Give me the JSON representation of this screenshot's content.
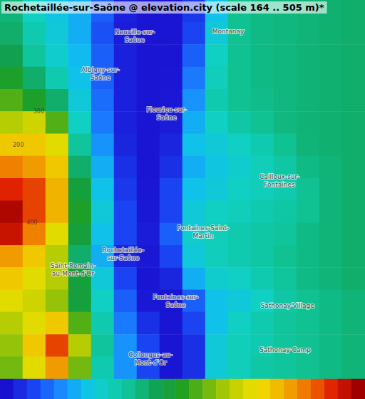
{
  "chart_data": {
    "type": "heatmap",
    "title": "Rochetaillée-sur-Saône @ elevation.city (scale 164 .. 505 m)*",
    "tick_labels": false,
    "grid_values": [
      [
        295,
        260,
        245,
        230,
        200,
        172,
        166,
        166,
        185,
        240,
        285,
        290,
        292,
        295,
        298,
        300
      ],
      [
        300,
        270,
        250,
        230,
        195,
        170,
        166,
        166,
        190,
        250,
        285,
        290,
        292,
        295,
        298,
        300
      ],
      [
        310,
        280,
        255,
        235,
        200,
        172,
        166,
        166,
        200,
        260,
        285,
        290,
        292,
        296,
        298,
        300
      ],
      [
        330,
        300,
        270,
        240,
        200,
        172,
        166,
        167,
        210,
        265,
        285,
        290,
        292,
        296,
        298,
        300
      ],
      [
        350,
        330,
        300,
        250,
        205,
        172,
        166,
        168,
        220,
        270,
        285,
        288,
        292,
        296,
        298,
        300
      ],
      [
        380,
        390,
        350,
        260,
        210,
        172,
        166,
        170,
        230,
        260,
        275,
        285,
        292,
        296,
        298,
        300
      ],
      [
        420,
        420,
        400,
        280,
        220,
        175,
        166,
        175,
        240,
        250,
        260,
        270,
        285,
        295,
        298,
        300
      ],
      [
        450,
        440,
        420,
        300,
        230,
        180,
        166,
        180,
        230,
        245,
        255,
        265,
        275,
        290,
        295,
        300
      ],
      [
        480,
        470,
        430,
        320,
        240,
        185,
        167,
        190,
        240,
        250,
        260,
        265,
        270,
        285,
        295,
        300
      ],
      [
        500,
        470,
        430,
        330,
        250,
        190,
        168,
        190,
        250,
        260,
        265,
        270,
        275,
        285,
        295,
        300
      ],
      [
        490,
        450,
        400,
        320,
        240,
        190,
        170,
        200,
        255,
        265,
        270,
        275,
        280,
        290,
        295,
        300
      ],
      [
        440,
        420,
        380,
        300,
        230,
        175,
        168,
        190,
        250,
        265,
        270,
        275,
        285,
        290,
        295,
        300
      ],
      [
        420,
        400,
        380,
        320,
        250,
        190,
        166,
        175,
        230,
        255,
        260,
        270,
        280,
        290,
        295,
        300
      ],
      [
        400,
        390,
        370,
        320,
        260,
        200,
        168,
        166,
        200,
        240,
        250,
        260,
        275,
        285,
        290,
        295
      ],
      [
        380,
        400,
        420,
        350,
        270,
        210,
        180,
        166,
        190,
        240,
        260,
        270,
        280,
        285,
        290,
        295
      ],
      [
        370,
        420,
        470,
        380,
        280,
        220,
        190,
        166,
        180,
        250,
        265,
        270,
        280,
        285,
        290,
        295
      ],
      [
        360,
        400,
        440,
        360,
        270,
        220,
        190,
        166,
        180,
        250,
        265,
        275,
        280,
        285,
        290,
        295
      ]
    ],
    "colors": [
      "#1a10d0",
      "#1a40f0",
      "#1a80ff",
      "#10c0f0",
      "#10d0c0",
      "#10c090",
      "#10a050",
      "#20a020",
      "#70b810",
      "#c0d000",
      "#f0e000",
      "#f0b000",
      "#f07000",
      "#e02000",
      "#a00000"
    ],
    "colorbar": {
      "range": [
        164,
        505
      ],
      "ticks": [
        164,
        177,
        190,
        203,
        216,
        229,
        243,
        256,
        269,
        282,
        295,
        308,
        321,
        335,
        348,
        361,
        374,
        387,
        400,
        413,
        426,
        439,
        452,
        465,
        479,
        492,
        505
      ]
    },
    "places": [
      {
        "name": "Neuville-sur-\nSaône",
        "x": 5.9,
        "y": 1.6
      },
      {
        "name": "Montanay",
        "x": 10.0,
        "y": 1.4
      },
      {
        "name": "Albigny-sur-\nSaône",
        "x": 4.4,
        "y": 3.3
      },
      {
        "name": "Fleurieu-sur-\nSaône",
        "x": 7.3,
        "y": 5.1
      },
      {
        "name": "Cailloux-sur-\nFontaines",
        "x": 12.25,
        "y": 8.1
      },
      {
        "name": "Fontaines-Saint-\nMartin",
        "x": 8.9,
        "y": 10.4
      },
      {
        "name": "Rochetaillée-\nsur-Saône",
        "x": 5.4,
        "y": 11.4
      },
      {
        "name": "Saint-Romain-\nau-Mont-d'Or",
        "x": 3.2,
        "y": 12.1
      },
      {
        "name": "Fontaines-sur-\nSaône",
        "x": 7.7,
        "y": 13.5
      },
      {
        "name": "Sathonay-Village",
        "x": 12.6,
        "y": 13.7
      },
      {
        "name": "Sathonay-Camp",
        "x": 12.5,
        "y": 15.7
      },
      {
        "name": "Collonges-au-\nMont-d'Or",
        "x": 6.6,
        "y": 16.1
      }
    ],
    "annotations": [
      {
        "text": "300",
        "x": 1.7,
        "y": 5.0
      },
      {
        "text": "200",
        "x": 0.8,
        "y": 6.5
      },
      {
        "text": "400",
        "x": 1.4,
        "y": 10.0
      }
    ]
  }
}
